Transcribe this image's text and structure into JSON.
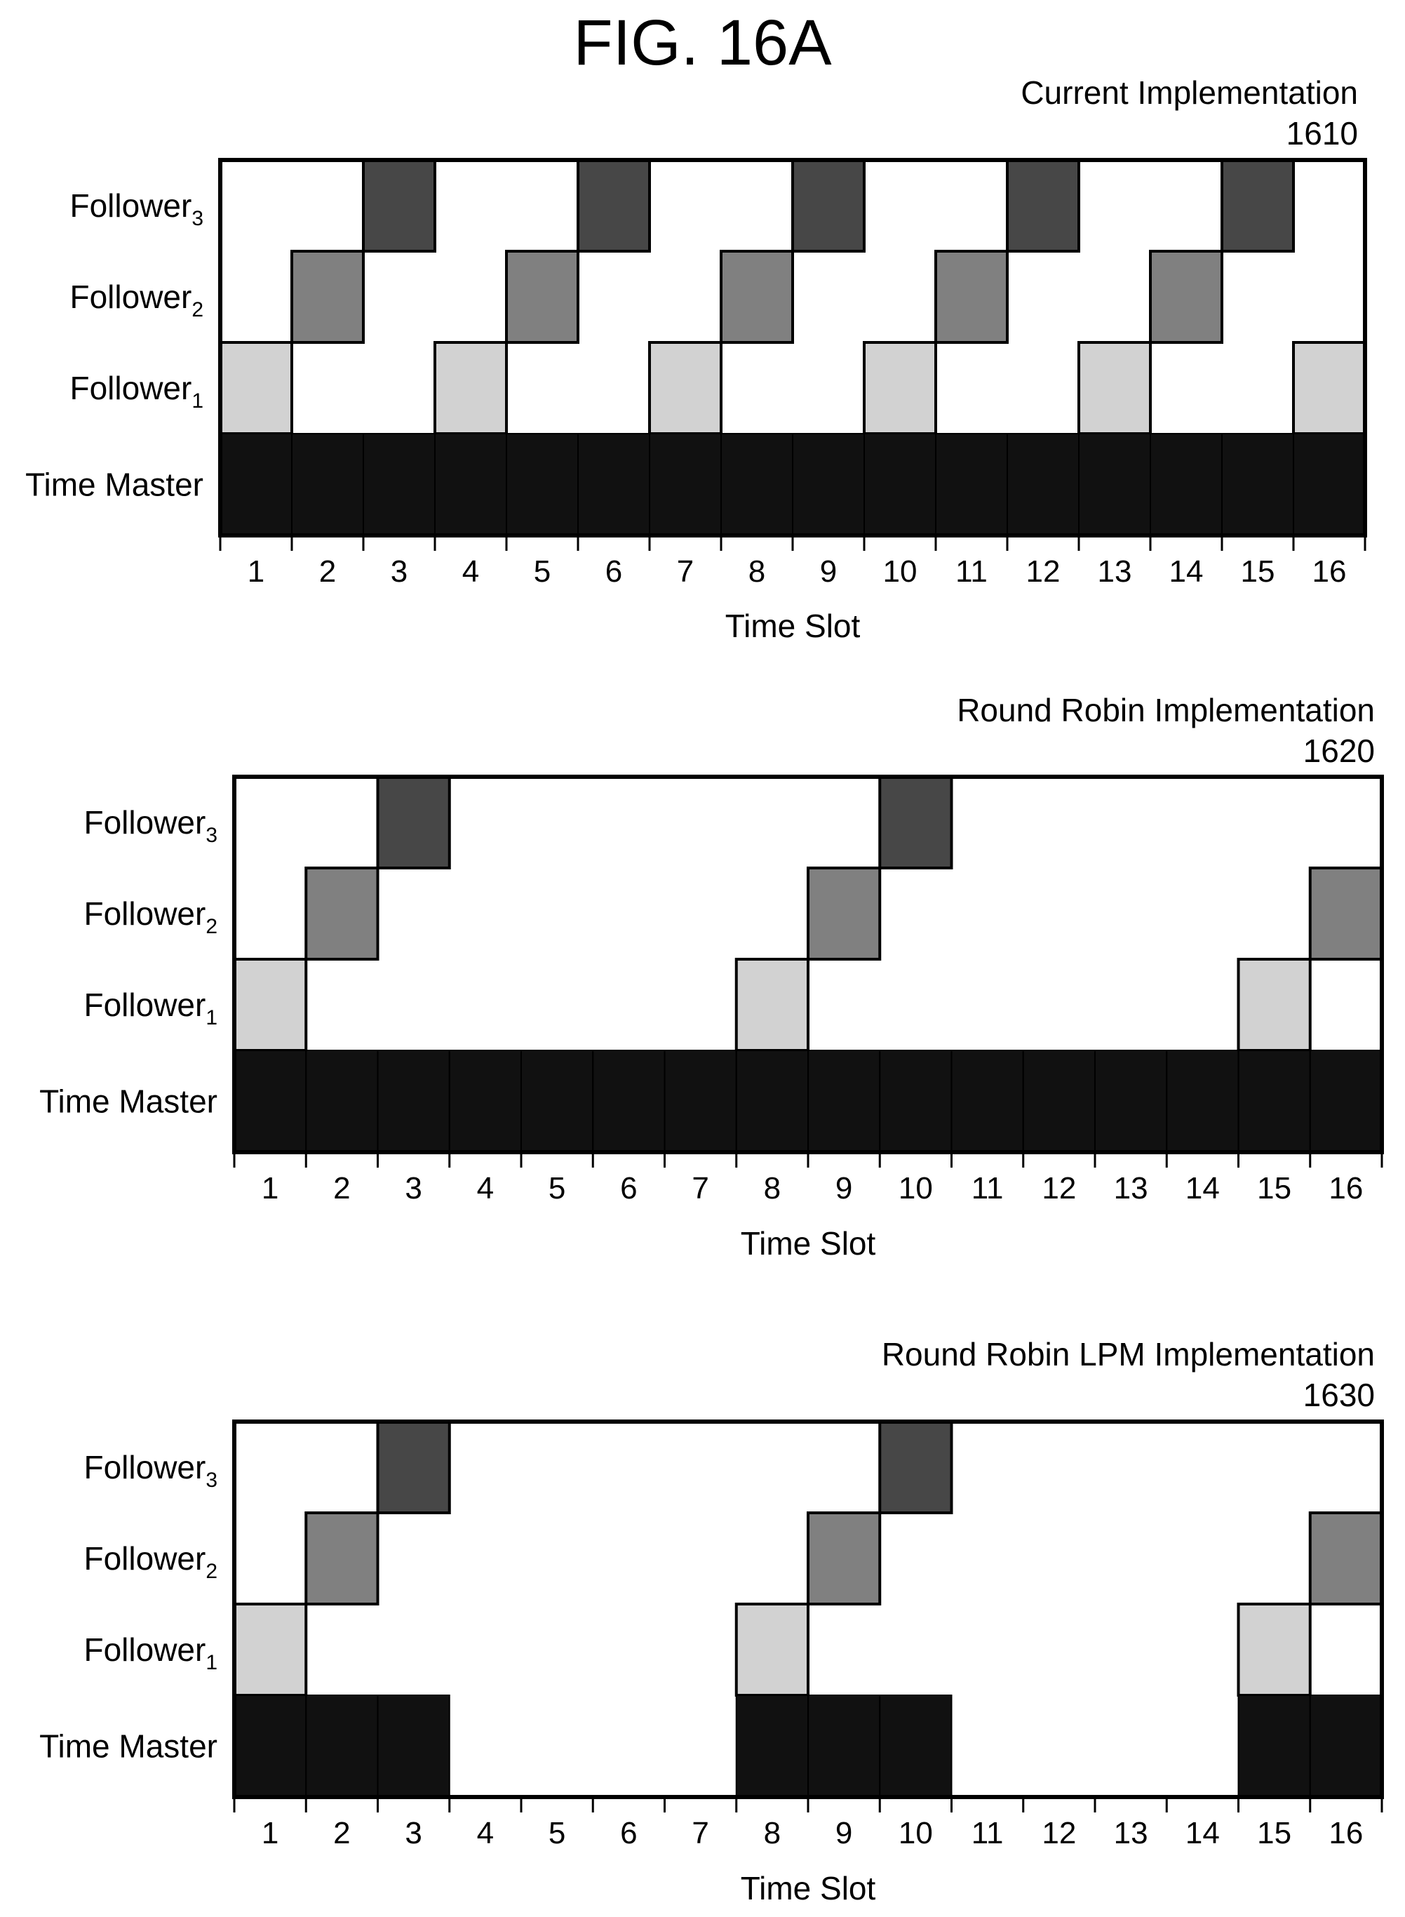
{
  "figure_title": "FIG. 16A",
  "colors": {
    "follower1": "#d2d2d2",
    "follower2": "#808080",
    "follower3": "#474747",
    "time_master": "#111111",
    "empty": "#ffffff",
    "border": "#000000"
  },
  "panels": [
    {
      "title": "Current Implementation",
      "ref": "1610",
      "x_axis_label": "Time Slot",
      "rows": [
        {
          "label": "Follower",
          "sub": "3",
          "fill": "follower3",
          "slots": [
            3,
            6,
            9,
            12,
            15
          ]
        },
        {
          "label": "Follower",
          "sub": "2",
          "fill": "follower2",
          "slots": [
            2,
            5,
            8,
            11,
            14
          ]
        },
        {
          "label": "Follower",
          "sub": "1",
          "fill": "follower1",
          "slots": [
            1,
            4,
            7,
            10,
            13,
            16
          ]
        },
        {
          "label": "Time Master",
          "sub": "",
          "fill": "time_master",
          "slots": [
            1,
            2,
            3,
            4,
            5,
            6,
            7,
            8,
            9,
            10,
            11,
            12,
            13,
            14,
            15,
            16
          ]
        }
      ],
      "ticks": [
        "1",
        "2",
        "3",
        "4",
        "5",
        "6",
        "7",
        "8",
        "9",
        "10",
        "11",
        "12",
        "13",
        "14",
        "15",
        "16"
      ]
    },
    {
      "title": "Round Robin Implementation",
      "ref": "1620",
      "x_axis_label": "Time Slot",
      "rows": [
        {
          "label": "Follower",
          "sub": "3",
          "fill": "follower3",
          "slots": [
            3,
            10
          ]
        },
        {
          "label": "Follower",
          "sub": "2",
          "fill": "follower2",
          "slots": [
            2,
            9,
            16
          ]
        },
        {
          "label": "Follower",
          "sub": "1",
          "fill": "follower1",
          "slots": [
            1,
            8,
            15
          ]
        },
        {
          "label": "Time Master",
          "sub": "",
          "fill": "time_master",
          "slots": [
            1,
            2,
            3,
            4,
            5,
            6,
            7,
            8,
            9,
            10,
            11,
            12,
            13,
            14,
            15,
            16
          ]
        }
      ],
      "ticks": [
        "1",
        "2",
        "3",
        "4",
        "5",
        "6",
        "7",
        "8",
        "9",
        "10",
        "11",
        "12",
        "13",
        "14",
        "15",
        "16"
      ]
    },
    {
      "title": "Round Robin LPM Implementation",
      "ref": "1630",
      "x_axis_label": "Time Slot",
      "rows": [
        {
          "label": "Follower",
          "sub": "3",
          "fill": "follower3",
          "slots": [
            3,
            10
          ]
        },
        {
          "label": "Follower",
          "sub": "2",
          "fill": "follower2",
          "slots": [
            2,
            9,
            16
          ]
        },
        {
          "label": "Follower",
          "sub": "1",
          "fill": "follower1",
          "slots": [
            1,
            8,
            15
          ]
        },
        {
          "label": "Time Master",
          "sub": "",
          "fill": "time_master",
          "slots": [
            1,
            2,
            3,
            8,
            9,
            10,
            15,
            16
          ]
        }
      ],
      "ticks": [
        "1",
        "2",
        "3",
        "4",
        "5",
        "6",
        "7",
        "8",
        "9",
        "10",
        "11",
        "12",
        "13",
        "14",
        "15",
        "16"
      ]
    }
  ]
}
